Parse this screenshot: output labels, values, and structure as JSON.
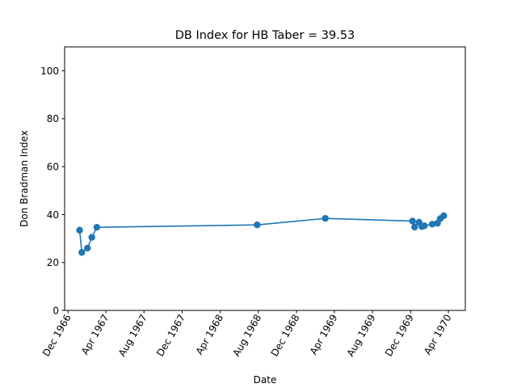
{
  "chart_data": {
    "type": "line",
    "title": "DB Index for HB Taber = 39.53",
    "xlabel": "Date",
    "ylabel": "Don Bradman Index",
    "ylim": [
      0,
      110
    ],
    "yticks": [
      0,
      20,
      40,
      60,
      80,
      100
    ],
    "xlim": [
      "1966-11-20",
      "1970-05-25"
    ],
    "xticks": [
      {
        "date": "1966-12-01",
        "label": "Dec 1966"
      },
      {
        "date": "1967-04-01",
        "label": "Apr 1967"
      },
      {
        "date": "1967-08-01",
        "label": "Aug 1967"
      },
      {
        "date": "1967-12-01",
        "label": "Dec 1967"
      },
      {
        "date": "1968-04-01",
        "label": "Apr 1968"
      },
      {
        "date": "1968-08-01",
        "label": "Aug 1968"
      },
      {
        "date": "1968-12-01",
        "label": "Dec 1968"
      },
      {
        "date": "1969-04-01",
        "label": "Apr 1969"
      },
      {
        "date": "1969-08-01",
        "label": "Aug 1969"
      },
      {
        "date": "1969-12-01",
        "label": "Dec 1969"
      },
      {
        "date": "1970-04-01",
        "label": "Apr 1970"
      }
    ],
    "grid": false,
    "color": "#1f77b4",
    "series": [
      {
        "name": "",
        "points": [
          {
            "x": "1967-01-07",
            "y": 33.5
          },
          {
            "x": "1967-01-14",
            "y": 24.2
          },
          {
            "x": "1967-02-01",
            "y": 26.0
          },
          {
            "x": "1967-02-15",
            "y": 30.5
          },
          {
            "x": "1967-03-03",
            "y": 34.7
          },
          {
            "x": "1968-07-28",
            "y": 35.7
          },
          {
            "x": "1969-03-03",
            "y": 38.4
          },
          {
            "x": "1969-12-07",
            "y": 37.3
          },
          {
            "x": "1969-12-14",
            "y": 34.8
          },
          {
            "x": "1969-12-28",
            "y": 36.8
          },
          {
            "x": "1970-01-06",
            "y": 35.0
          },
          {
            "x": "1970-01-14",
            "y": 35.3
          },
          {
            "x": "1970-02-08",
            "y": 36.0
          },
          {
            "x": "1970-02-25",
            "y": 36.4
          },
          {
            "x": "1970-03-06",
            "y": 38.3
          },
          {
            "x": "1970-03-17",
            "y": 39.53
          }
        ]
      }
    ]
  }
}
